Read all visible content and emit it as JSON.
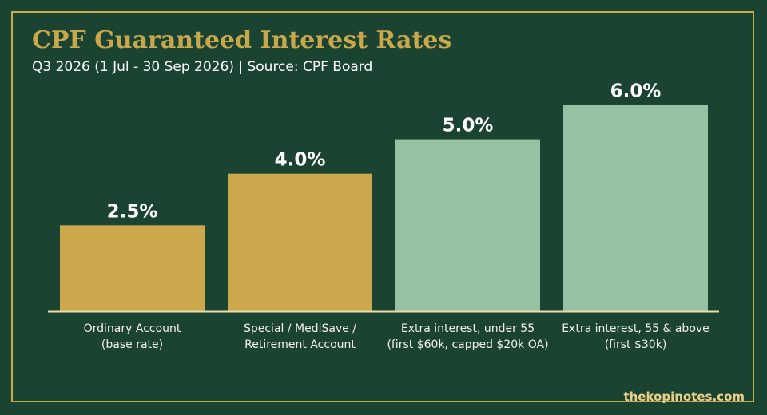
{
  "header": {
    "title": "CPF Guaranteed Interest Rates",
    "subtitle": "Q3 2026 (1 Jul - 30 Sep 2026)  |  Source: CPF Board"
  },
  "footer": {
    "site": "thekopinotes.com"
  },
  "colors": {
    "background": "#1b4332",
    "accent_gold": "#c9a84c",
    "bar_gold": "#cba84c",
    "bar_green": "#97c1a3",
    "text_white": "#ffffff"
  },
  "chart_data": {
    "type": "bar",
    "title": "CPF Guaranteed Interest Rates",
    "subtitle": "Q3 2026 (1 Jul - 30 Sep 2026)  |  Source: CPF Board",
    "xlabel": "",
    "ylabel": "",
    "unit": "%",
    "ylim": [
      0,
      6.5
    ],
    "grid": false,
    "categories": [
      [
        "Ordinary Account",
        "(base rate)"
      ],
      [
        "Special / MediSave /",
        "Retirement Account"
      ],
      [
        "Extra interest, under 55",
        "(first $60k, capped $20k OA)"
      ],
      [
        "Extra interest, 55 & above",
        "(first $30k)"
      ]
    ],
    "values": [
      2.5,
      4.0,
      5.0,
      6.0
    ],
    "value_labels": [
      "2.5%",
      "4.0%",
      "5.0%",
      "6.0%"
    ],
    "bar_colors": [
      "#cba84c",
      "#cba84c",
      "#97c1a3",
      "#97c1a3"
    ]
  }
}
